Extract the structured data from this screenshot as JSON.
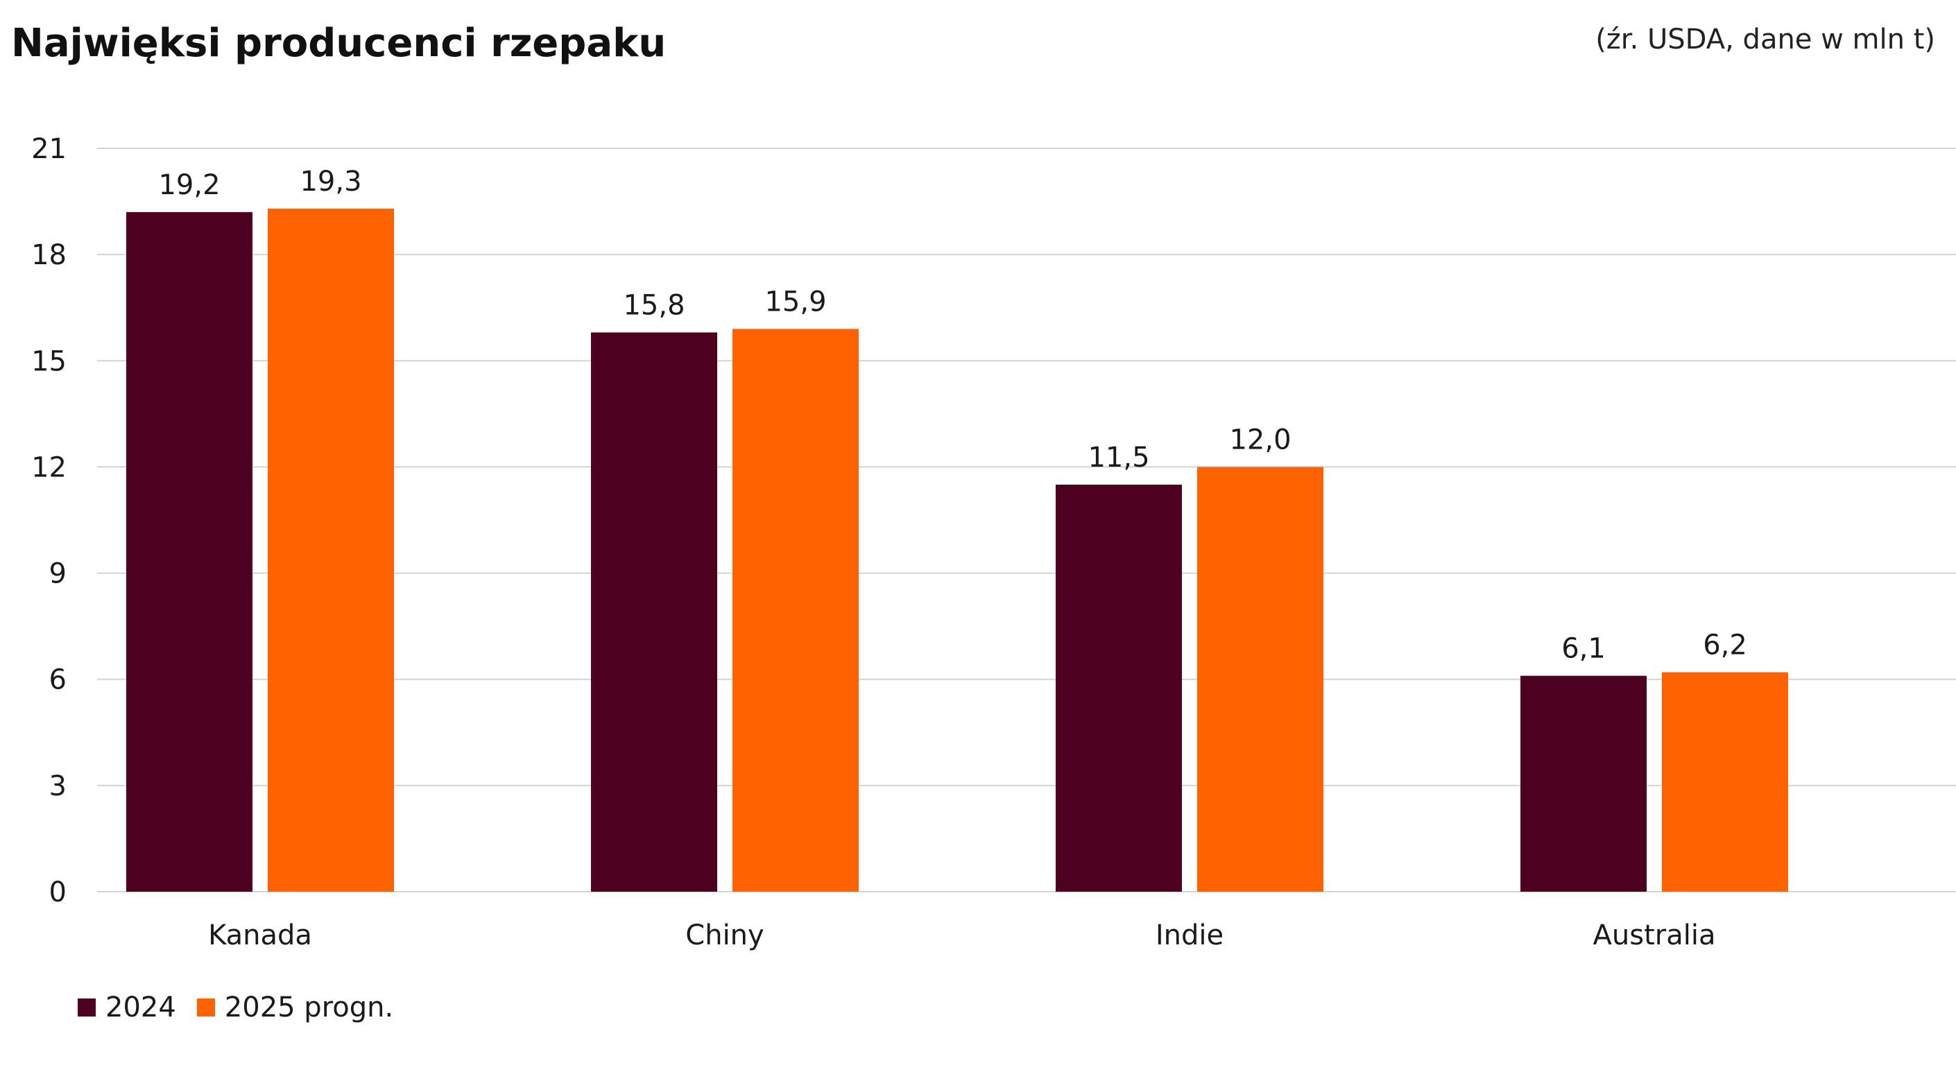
{
  "header": {
    "title": "Najwięksi producenci rzepaku",
    "source": "(źr. USDA, dane w mln t)"
  },
  "colors": {
    "series_2024": "#4d0020",
    "series_2025": "#ff6200",
    "grid": "#d4d4d4"
  },
  "chart_data": {
    "type": "bar",
    "title": "Najwięksi producenci rzepaku",
    "subtitle": "(źr. USDA, dane w mln t)",
    "categories": [
      "Kanada",
      "Chiny",
      "Indie",
      "Australia"
    ],
    "series": [
      {
        "name": "2024",
        "values": [
          19.2,
          15.8,
          11.5,
          6.1
        ],
        "labels": [
          "19,2",
          "15,8",
          "11,5",
          "6,1"
        ]
      },
      {
        "name": "2025 progn.",
        "values": [
          19.3,
          15.9,
          12.0,
          6.2
        ],
        "labels": [
          "19,3",
          "15,9",
          "12,0",
          "6,2"
        ]
      }
    ],
    "ylim": [
      0,
      21
    ],
    "yticks": [
      0,
      3,
      6,
      9,
      12,
      15,
      18,
      21
    ],
    "xlabel": "",
    "ylabel": "",
    "grid": true,
    "legend": "bottom-left"
  }
}
